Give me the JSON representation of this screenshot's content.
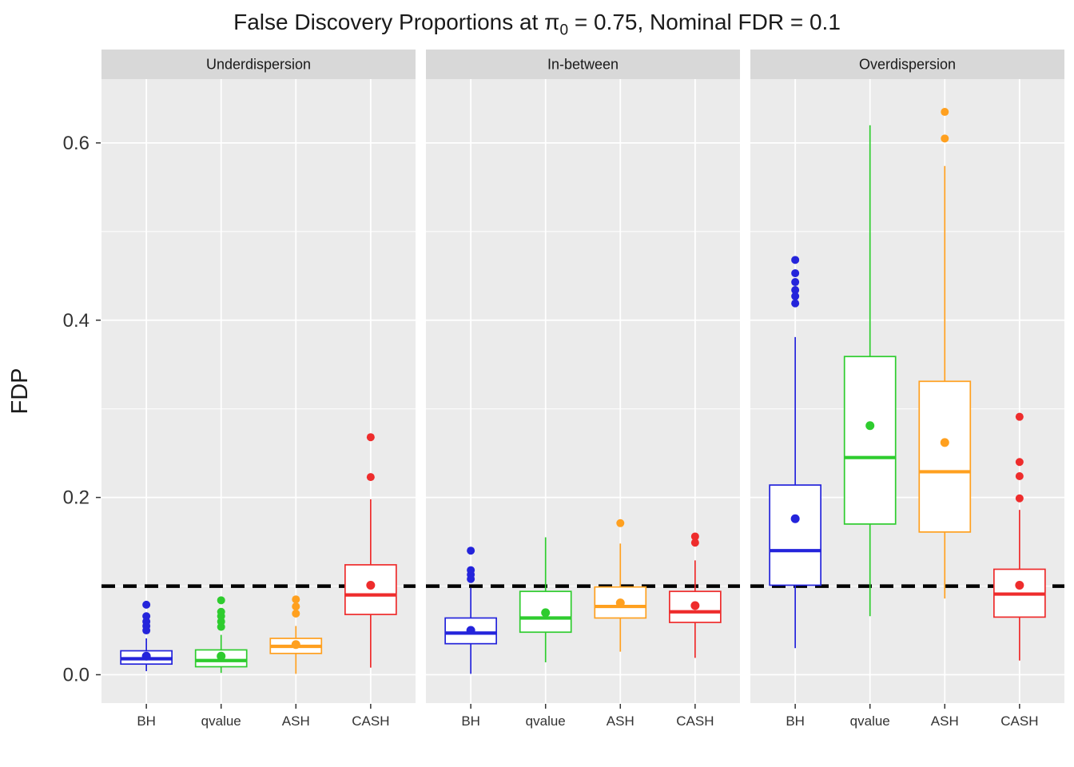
{
  "title": {
    "pre": "False Discovery Proportions at π",
    "sub": "0",
    "post": " = 0.75, Nominal FDR = 0.1"
  },
  "chart_data": {
    "type": "boxplot",
    "title": "False Discovery Proportions at π0 = 0.75, Nominal FDR = 0.1",
    "ylabel": "FDP",
    "ylim": [
      -0.032,
      0.672
    ],
    "yticks": [
      {
        "label": "0.0",
        "value": 0.0
      },
      {
        "label": "0.2",
        "value": 0.2
      },
      {
        "label": "0.4",
        "value": 0.4
      },
      {
        "label": "0.6",
        "value": 0.6
      }
    ],
    "minor_ticks": [
      0.1,
      0.3,
      0.5
    ],
    "grid": true,
    "legend": "none",
    "methods": [
      "BH",
      "qvalue",
      "ASH",
      "CASH"
    ],
    "colors": {
      "BH": "#2424DB",
      "qvalue": "#2ECC2E",
      "ASH": "#FFA01F",
      "CASH": "#EE2C2C"
    },
    "reference_line": {
      "value": 0.1,
      "style": "dashed",
      "color": "#000000",
      "label": "Nominal FDR"
    },
    "theme": {
      "panel_bg": "#EBEBEB",
      "strip_bg": "#D8D8D8",
      "grid_color": "#FFFFFF",
      "axis_text": "#333333",
      "title_text": "#1A1A1A"
    },
    "facets": [
      {
        "label": "Underdispersion",
        "boxes": [
          {
            "method": "BH",
            "whislo": 0.004,
            "q1": 0.012,
            "median": 0.018,
            "q3": 0.027,
            "whishi": 0.041,
            "mean": 0.021,
            "outliers": [
              0.05,
              0.055,
              0.06,
              0.066,
              0.079
            ]
          },
          {
            "method": "qvalue",
            "whislo": 0.002,
            "q1": 0.009,
            "median": 0.016,
            "q3": 0.028,
            "whishi": 0.045,
            "mean": 0.021,
            "outliers": [
              0.054,
              0.06,
              0.066,
              0.071,
              0.084
            ]
          },
          {
            "method": "ASH",
            "whislo": 0.001,
            "q1": 0.024,
            "median": 0.032,
            "q3": 0.041,
            "whishi": 0.055,
            "mean": 0.034,
            "outliers": [
              0.069,
              0.077,
              0.085
            ]
          },
          {
            "method": "CASH",
            "whislo": 0.008,
            "q1": 0.068,
            "median": 0.09,
            "q3": 0.124,
            "whishi": 0.198,
            "mean": 0.101,
            "outliers": [
              0.223,
              0.268
            ]
          }
        ]
      },
      {
        "label": "In-between",
        "boxes": [
          {
            "method": "BH",
            "whislo": 0.001,
            "q1": 0.035,
            "median": 0.047,
            "q3": 0.064,
            "whishi": 0.098,
            "mean": 0.05,
            "outliers": [
              0.108,
              0.113,
              0.118,
              0.14
            ]
          },
          {
            "method": "qvalue",
            "whislo": 0.014,
            "q1": 0.048,
            "median": 0.064,
            "q3": 0.094,
            "whishi": 0.155,
            "mean": 0.07,
            "outliers": []
          },
          {
            "method": "ASH",
            "whislo": 0.026,
            "q1": 0.064,
            "median": 0.077,
            "q3": 0.099,
            "whishi": 0.148,
            "mean": 0.081,
            "outliers": [
              0.171
            ]
          },
          {
            "method": "CASH",
            "whislo": 0.019,
            "q1": 0.059,
            "median": 0.071,
            "q3": 0.094,
            "whishi": 0.129,
            "mean": 0.078,
            "outliers": [
              0.149,
              0.156
            ]
          }
        ]
      },
      {
        "label": "Overdispersion",
        "boxes": [
          {
            "method": "BH",
            "whislo": 0.03,
            "q1": 0.101,
            "median": 0.14,
            "q3": 0.214,
            "whishi": 0.381,
            "mean": 0.176,
            "outliers": [
              0.419,
              0.427,
              0.434,
              0.443,
              0.453,
              0.468
            ]
          },
          {
            "method": "qvalue",
            "whislo": 0.066,
            "q1": 0.17,
            "median": 0.245,
            "q3": 0.359,
            "whishi": 0.62,
            "mean": 0.281,
            "outliers": []
          },
          {
            "method": "ASH",
            "whislo": 0.086,
            "q1": 0.161,
            "median": 0.229,
            "q3": 0.331,
            "whishi": 0.574,
            "mean": 0.262,
            "outliers": [
              0.605,
              0.635
            ]
          },
          {
            "method": "CASH",
            "whislo": 0.016,
            "q1": 0.065,
            "median": 0.091,
            "q3": 0.119,
            "whishi": 0.186,
            "mean": 0.101,
            "outliers": [
              0.199,
              0.224,
              0.24,
              0.291
            ]
          }
        ]
      }
    ]
  }
}
